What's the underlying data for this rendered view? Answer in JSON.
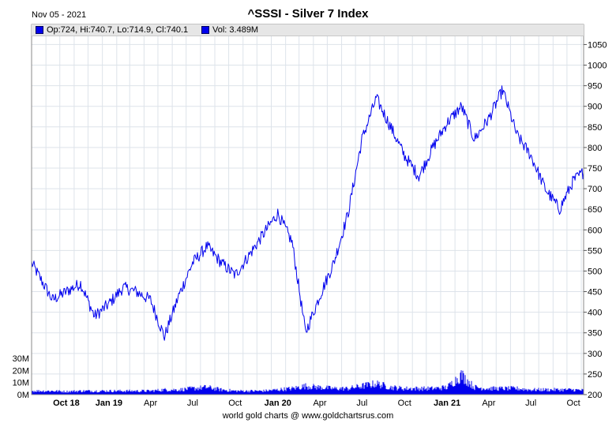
{
  "header": {
    "date": "Nov 05 - 2021",
    "title": "^SSSI - Silver 7 Index"
  },
  "legend": {
    "price_label": "Op:724, Hi:740.7, Lo:714.9, Cl:740.1",
    "volume_label": "Vol: 3.489M"
  },
  "footer": "world gold charts @ www.goldchartsrus.com",
  "colors": {
    "price_line": "#0000ee",
    "volume_bars": "#0000ee",
    "grid": "#dde3ea",
    "legend_background": "#e6e6e6"
  },
  "chart_data": {
    "type": "line",
    "title": "^SSSI - Silver 7 Index",
    "x_tick_labels": [
      "Oct 18",
      "Jan 19",
      "Apr",
      "Jul",
      "Oct",
      "Jan 20",
      "Apr",
      "Jul",
      "Oct",
      "Jan 21",
      "Apr",
      "Jul",
      "Oct"
    ],
    "bold_x_ticks": [
      "Oct 18",
      "Jan 19",
      "Jan 20",
      "Jan 21"
    ],
    "x_range": [
      "2018-08",
      "2021-11-05"
    ],
    "y_ticks": [
      200,
      250,
      300,
      350,
      400,
      450,
      500,
      550,
      600,
      650,
      700,
      750,
      800,
      850,
      900,
      950,
      1000,
      1050
    ],
    "ylim": [
      200,
      1070
    ],
    "y_axis_side": "right",
    "grid": true,
    "volume_ticks": [
      "0M",
      "10M",
      "20M",
      "30M"
    ],
    "volume_ylim": [
      0,
      30
    ],
    "series": [
      {
        "name": "^SSSI",
        "style": "line",
        "x": [
          "2018-08",
          "2018-09",
          "2018-10",
          "2018-11",
          "2018-12",
          "2019-01",
          "2019-02",
          "2019-03",
          "2019-04",
          "2019-05",
          "2019-06",
          "2019-07",
          "2019-08",
          "2019-09",
          "2019-10",
          "2019-11",
          "2019-12",
          "2020-01",
          "2020-02",
          "2020-03",
          "2020-04",
          "2020-05",
          "2020-06",
          "2020-07",
          "2020-08",
          "2020-09",
          "2020-10",
          "2020-11",
          "2020-12",
          "2021-01",
          "2021-02",
          "2021-03",
          "2021-04",
          "2021-05",
          "2021-06",
          "2021-07",
          "2021-08",
          "2021-09",
          "2021-10",
          "2021-11"
        ],
        "values": [
          520,
          430,
          450,
          470,
          390,
          420,
          460,
          450,
          430,
          340,
          440,
          520,
          560,
          520,
          490,
          540,
          590,
          640,
          570,
          350,
          440,
          520,
          640,
          820,
          920,
          850,
          780,
          730,
          800,
          860,
          900,
          820,
          870,
          940,
          830,
          780,
          700,
          650,
          720,
          740
        ]
      },
      {
        "name": "Vol",
        "style": "bar",
        "x": [
          "2018-08",
          "2018-09",
          "2018-10",
          "2018-11",
          "2018-12",
          "2019-01",
          "2019-02",
          "2019-03",
          "2019-04",
          "2019-05",
          "2019-06",
          "2019-07",
          "2019-08",
          "2019-09",
          "2019-10",
          "2019-11",
          "2019-12",
          "2020-01",
          "2020-02",
          "2020-03",
          "2020-04",
          "2020-05",
          "2020-06",
          "2020-07",
          "2020-08",
          "2020-09",
          "2020-10",
          "2020-11",
          "2020-12",
          "2021-01",
          "2021-02",
          "2021-03",
          "2021-04",
          "2021-05",
          "2021-06",
          "2021-07",
          "2021-08",
          "2021-09",
          "2021-10",
          "2021-11"
        ],
        "values": [
          3,
          3,
          2.5,
          3,
          3,
          3,
          3,
          3,
          3,
          4,
          4,
          5,
          6,
          4,
          3,
          3,
          3,
          4,
          5,
          7,
          6,
          5,
          5,
          7,
          9,
          6,
          5,
          5,
          5,
          6,
          16,
          6,
          5,
          5,
          5,
          4,
          4,
          4,
          4,
          3.5
        ]
      }
    ]
  }
}
